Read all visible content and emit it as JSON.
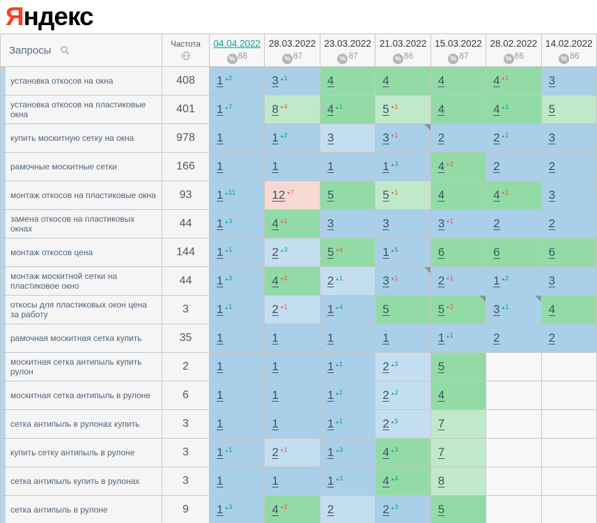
{
  "logo": {
    "first_letter": "Я",
    "rest": "ндекс"
  },
  "icons": {
    "search": "magnifier-icon",
    "frequency": "globe-icon",
    "visibility": "percent-circle-icon",
    "note": "corner-flag"
  },
  "colors": {
    "accent_teal": "#00a591",
    "decline_red": "#e2544a",
    "logo_red": "#fc3f1d",
    "cell_blue": "#a9cfe9",
    "cell_lightblue": "#c4def1",
    "cell_green": "#92dba6",
    "cell_lightgreen": "#c0e9ca",
    "cell_pink": "#f7d9d3",
    "cell_empty": "#f7f7f7",
    "row_strip": "#b5d6ee"
  },
  "table": {
    "queries_header": "Запросы",
    "frequency_header": "Частота",
    "columns": [
      {
        "date": "04.04.2022",
        "metric": "88",
        "active": true
      },
      {
        "date": "28.03.2022",
        "metric": "87",
        "active": false
      },
      {
        "date": "23.03.2022",
        "metric": "87",
        "active": false
      },
      {
        "date": "21.03.2022",
        "metric": "86",
        "active": false
      },
      {
        "date": "15.03.2022",
        "metric": "87",
        "active": false
      },
      {
        "date": "28.02.2022",
        "metric": "86",
        "active": false
      },
      {
        "date": "14.02.2022",
        "metric": "86",
        "active": false
      }
    ],
    "rows": [
      {
        "kw": "установка откосов на окна",
        "freq": "408",
        "cells": [
          {
            "p": "1",
            "chg": {
              "v": "2",
              "d": "up"
            },
            "bg": "blue"
          },
          {
            "p": "3",
            "chg": {
              "v": "1",
              "d": "up"
            },
            "bg": "blue"
          },
          {
            "p": "4",
            "bg": "green"
          },
          {
            "p": "4",
            "bg": "green"
          },
          {
            "p": "4",
            "bg": "green"
          },
          {
            "p": "4",
            "chg": {
              "v": "1",
              "d": "down"
            },
            "bg": "green"
          },
          {
            "p": "3",
            "bg": "blue"
          }
        ]
      },
      {
        "kw": "установка откосов на пластиковые окна",
        "freq": "401",
        "cells": [
          {
            "p": "1",
            "chg": {
              "v": "7",
              "d": "up"
            },
            "bg": "blue"
          },
          {
            "p": "8",
            "chg": {
              "v": "4",
              "d": "down"
            },
            "bg": "lightgreen"
          },
          {
            "p": "4",
            "chg": {
              "v": "1",
              "d": "up"
            },
            "bg": "green"
          },
          {
            "p": "5",
            "chg": {
              "v": "1",
              "d": "down"
            },
            "bg": "lightgreen"
          },
          {
            "p": "4",
            "bg": "green"
          },
          {
            "p": "4",
            "chg": {
              "v": "1",
              "d": "up"
            },
            "bg": "green"
          },
          {
            "p": "5",
            "bg": "lightgreen"
          }
        ]
      },
      {
        "kw": "купить москитную сетку на окна",
        "freq": "978",
        "cells": [
          {
            "p": "1",
            "bg": "blue"
          },
          {
            "p": "1",
            "chg": {
              "v": "2",
              "d": "up"
            },
            "bg": "blue"
          },
          {
            "p": "3",
            "bg": "lightblue"
          },
          {
            "p": "3",
            "chg": {
              "v": "1",
              "d": "down"
            },
            "bg": "blue",
            "flag": true
          },
          {
            "p": "2",
            "bg": "blue"
          },
          {
            "p": "2",
            "chg": {
              "v": "1",
              "d": "up"
            },
            "bg": "blue"
          },
          {
            "p": "3",
            "bg": "blue"
          }
        ]
      },
      {
        "kw": "рамочные москитные сетки",
        "freq": "166",
        "cells": [
          {
            "p": "1",
            "bg": "blue"
          },
          {
            "p": "1",
            "bg": "blue"
          },
          {
            "p": "1",
            "bg": "blue"
          },
          {
            "p": "1",
            "chg": {
              "v": "3",
              "d": "up"
            },
            "bg": "blue"
          },
          {
            "p": "4",
            "chg": {
              "v": "2",
              "d": "down"
            },
            "bg": "green"
          },
          {
            "p": "2",
            "bg": "blue"
          },
          {
            "p": "2",
            "bg": "blue"
          }
        ]
      },
      {
        "kw": "монтаж откосов на пластиковые окна",
        "freq": "93",
        "cells": [
          {
            "p": "1",
            "chg": {
              "v": "11",
              "d": "up"
            },
            "bg": "blue"
          },
          {
            "p": "12",
            "chg": {
              "v": "7",
              "d": "down"
            },
            "bg": "pink"
          },
          {
            "p": "5",
            "bg": "green"
          },
          {
            "p": "5",
            "chg": {
              "v": "1",
              "d": "down"
            },
            "bg": "lightgreen"
          },
          {
            "p": "4",
            "bg": "green"
          },
          {
            "p": "4",
            "chg": {
              "v": "1",
              "d": "down"
            },
            "bg": "green"
          },
          {
            "p": "3",
            "bg": "blue"
          }
        ]
      },
      {
        "kw": "замена откосов на пластиковых окнах",
        "freq": "44",
        "cells": [
          {
            "p": "1",
            "chg": {
              "v": "3",
              "d": "up"
            },
            "bg": "blue"
          },
          {
            "p": "4",
            "chg": {
              "v": "1",
              "d": "down"
            },
            "bg": "green"
          },
          {
            "p": "3",
            "bg": "blue"
          },
          {
            "p": "3",
            "bg": "blue"
          },
          {
            "p": "3",
            "chg": {
              "v": "1",
              "d": "down"
            },
            "bg": "blue"
          },
          {
            "p": "2",
            "bg": "blue"
          },
          {
            "p": "2",
            "bg": "blue"
          }
        ]
      },
      {
        "kw": "монтаж откосов цена",
        "freq": "144",
        "cells": [
          {
            "p": "1",
            "chg": {
              "v": "1",
              "d": "up"
            },
            "bg": "blue"
          },
          {
            "p": "2",
            "chg": {
              "v": "3",
              "d": "up"
            },
            "bg": "lightblue"
          },
          {
            "p": "5",
            "chg": {
              "v": "4",
              "d": "down"
            },
            "bg": "green"
          },
          {
            "p": "1",
            "chg": {
              "v": "5",
              "d": "up"
            },
            "bg": "blue"
          },
          {
            "p": "6",
            "bg": "green"
          },
          {
            "p": "6",
            "bg": "green"
          },
          {
            "p": "6",
            "bg": "green"
          }
        ]
      },
      {
        "kw": "монтаж москитной сетки на пластиковое окно",
        "freq": "44",
        "cells": [
          {
            "p": "1",
            "chg": {
              "v": "3",
              "d": "up"
            },
            "bg": "blue"
          },
          {
            "p": "4",
            "chg": {
              "v": "2",
              "d": "down"
            },
            "bg": "green"
          },
          {
            "p": "2",
            "chg": {
              "v": "1",
              "d": "up"
            },
            "bg": "lightblue"
          },
          {
            "p": "3",
            "chg": {
              "v": "1",
              "d": "down"
            },
            "bg": "blue",
            "flag": true
          },
          {
            "p": "2",
            "chg": {
              "v": "1",
              "d": "down"
            },
            "bg": "blue"
          },
          {
            "p": "1",
            "chg": {
              "v": "2",
              "d": "up"
            },
            "bg": "blue"
          },
          {
            "p": "3",
            "bg": "blue"
          }
        ]
      },
      {
        "kw": "откосы для пластиковых окон цена за работу",
        "freq": "3",
        "cells": [
          {
            "p": "1",
            "chg": {
              "v": "1",
              "d": "up"
            },
            "bg": "blue"
          },
          {
            "p": "2",
            "chg": {
              "v": "1",
              "d": "down"
            },
            "bg": "lightblue"
          },
          {
            "p": "1",
            "chg": {
              "v": "4",
              "d": "up"
            },
            "bg": "blue"
          },
          {
            "p": "5",
            "bg": "green"
          },
          {
            "p": "5",
            "chg": {
              "v": "2",
              "d": "down"
            },
            "bg": "green",
            "flag": true
          },
          {
            "p": "3",
            "chg": {
              "v": "1",
              "d": "up"
            },
            "bg": "blue",
            "flag": true
          },
          {
            "p": "4",
            "bg": "green"
          }
        ]
      },
      {
        "kw": "рамочная москитная сетка купить",
        "freq": "35",
        "cells": [
          {
            "p": "1",
            "bg": "blue"
          },
          {
            "p": "1",
            "bg": "blue"
          },
          {
            "p": "1",
            "bg": "blue"
          },
          {
            "p": "1",
            "bg": "blue"
          },
          {
            "p": "1",
            "chg": {
              "v": "1",
              "d": "up"
            },
            "bg": "blue"
          },
          {
            "p": "2",
            "bg": "blue"
          },
          {
            "p": "2",
            "bg": "blue"
          }
        ]
      },
      {
        "kw": "москитная сетка антипыль купить рулон",
        "freq": "2",
        "cells": [
          {
            "p": "1",
            "bg": "blue"
          },
          {
            "p": "1",
            "bg": "blue"
          },
          {
            "p": "1",
            "chg": {
              "v": "1",
              "d": "up"
            },
            "bg": "blue"
          },
          {
            "p": "2",
            "chg": {
              "v": "3",
              "d": "up"
            },
            "bg": "lightblue"
          },
          {
            "p": "5",
            "bg": "green"
          },
          {
            "p": "",
            "bg": "empty"
          },
          {
            "p": "",
            "bg": "empty"
          }
        ]
      },
      {
        "kw": "москитная сетка антипыль в рулоне",
        "freq": "6",
        "cells": [
          {
            "p": "1",
            "bg": "blue"
          },
          {
            "p": "1",
            "bg": "blue"
          },
          {
            "p": "1",
            "chg": {
              "v": "1",
              "d": "up"
            },
            "bg": "blue"
          },
          {
            "p": "2",
            "chg": {
              "v": "2",
              "d": "up"
            },
            "bg": "lightblue"
          },
          {
            "p": "4",
            "bg": "green"
          },
          {
            "p": "",
            "bg": "empty"
          },
          {
            "p": "",
            "bg": "empty"
          }
        ]
      },
      {
        "kw": "сетка антипыль в рулонах купить",
        "freq": "3",
        "cells": [
          {
            "p": "1",
            "bg": "blue"
          },
          {
            "p": "1",
            "bg": "blue"
          },
          {
            "p": "1",
            "chg": {
              "v": "1",
              "d": "up"
            },
            "bg": "blue"
          },
          {
            "p": "2",
            "chg": {
              "v": "5",
              "d": "up"
            },
            "bg": "lightblue"
          },
          {
            "p": "7",
            "bg": "lightgreen"
          },
          {
            "p": "",
            "bg": "empty"
          },
          {
            "p": "",
            "bg": "empty"
          }
        ]
      },
      {
        "kw": "купить сетку антипыль в рулоне",
        "freq": "3",
        "cells": [
          {
            "p": "1",
            "chg": {
              "v": "1",
              "d": "up"
            },
            "bg": "blue"
          },
          {
            "p": "2",
            "chg": {
              "v": "1",
              "d": "down"
            },
            "bg": "lightblue"
          },
          {
            "p": "1",
            "chg": {
              "v": "3",
              "d": "up"
            },
            "bg": "blue"
          },
          {
            "p": "4",
            "chg": {
              "v": "3",
              "d": "up"
            },
            "bg": "green"
          },
          {
            "p": "7",
            "bg": "lightgreen"
          },
          {
            "p": "",
            "bg": "empty"
          },
          {
            "p": "",
            "bg": "empty"
          }
        ]
      },
      {
        "kw": "сетка антипыль купить в рулонах",
        "freq": "3",
        "cells": [
          {
            "p": "1",
            "bg": "blue"
          },
          {
            "p": "1",
            "bg": "blue"
          },
          {
            "p": "1",
            "chg": {
              "v": "3",
              "d": "up"
            },
            "bg": "blue"
          },
          {
            "p": "4",
            "chg": {
              "v": "4",
              "d": "up"
            },
            "bg": "green"
          },
          {
            "p": "8",
            "bg": "lightgreen"
          },
          {
            "p": "",
            "bg": "empty"
          },
          {
            "p": "",
            "bg": "empty"
          }
        ]
      },
      {
        "kw": "сетка антипыль в рулоне",
        "freq": "9",
        "cells": [
          {
            "p": "1",
            "chg": {
              "v": "3",
              "d": "up"
            },
            "bg": "blue"
          },
          {
            "p": "4",
            "chg": {
              "v": "2",
              "d": "down"
            },
            "bg": "green"
          },
          {
            "p": "2",
            "bg": "lightblue"
          },
          {
            "p": "2",
            "chg": {
              "v": "3",
              "d": "up"
            },
            "bg": "blue"
          },
          {
            "p": "5",
            "bg": "green"
          },
          {
            "p": "",
            "bg": "empty"
          },
          {
            "p": "",
            "bg": "empty"
          }
        ]
      }
    ]
  }
}
